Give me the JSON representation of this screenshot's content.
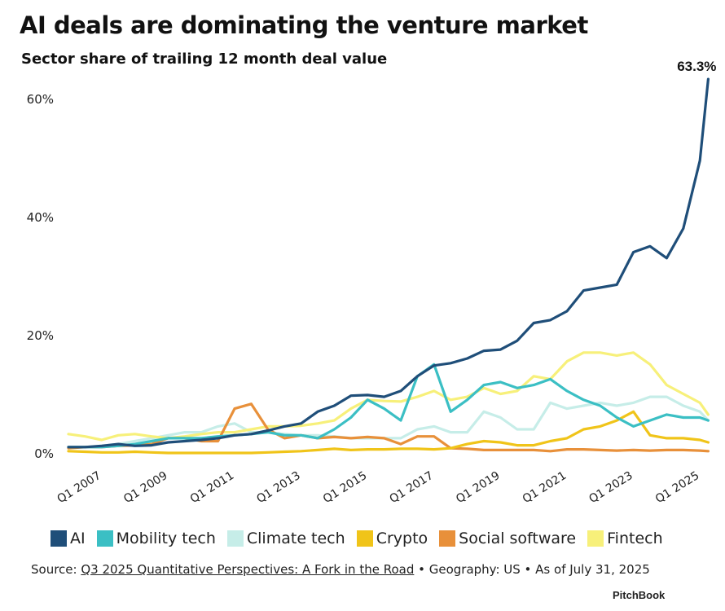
{
  "chart_data": {
    "type": "line",
    "title": "AI deals are dominating the venture market",
    "subtitle": "Sector share of trailing 12 month deal value",
    "xlabel": "",
    "ylabel": "",
    "ylim": [
      0,
      65
    ],
    "yticks": [
      "0%",
      "20%",
      "40%",
      "60%"
    ],
    "ytick_values": [
      0,
      20,
      40,
      60
    ],
    "xtick_labels": [
      "Q1 2007",
      "Q1 2009",
      "Q1 2011",
      "Q1 2013",
      "Q1 2015",
      "Q1 2017",
      "Q1 2019",
      "Q1 2021",
      "Q1 2023",
      "Q1 2025"
    ],
    "x": [
      "Q1 2006",
      "Q3 2006",
      "Q1 2007",
      "Q3 2007",
      "Q1 2008",
      "Q3 2008",
      "Q1 2009",
      "Q3 2009",
      "Q1 2010",
      "Q3 2010",
      "Q1 2011",
      "Q3 2011",
      "Q1 2012",
      "Q3 2012",
      "Q1 2013",
      "Q3 2013",
      "Q1 2014",
      "Q3 2014",
      "Q1 2015",
      "Q3 2015",
      "Q1 2016",
      "Q3 2016",
      "Q1 2017",
      "Q3 2017",
      "Q1 2018",
      "Q3 2018",
      "Q1 2019",
      "Q3 2019",
      "Q1 2020",
      "Q3 2020",
      "Q1 2021",
      "Q3 2021",
      "Q1 2022",
      "Q3 2022",
      "Q1 2023",
      "Q3 2023",
      "Q1 2024",
      "Q3 2024",
      "Q1 2025",
      "Q2 2025"
    ],
    "grid": false,
    "legend_placement": "bottom",
    "annotation": "63.3%",
    "series": [
      {
        "name": "Climate tech",
        "color": "#c6ede8",
        "values": [
          1,
          1,
          1.2,
          1.5,
          2,
          2.5,
          3,
          3.5,
          3.5,
          4.5,
          5,
          3.5,
          3.5,
          3.2,
          3,
          3,
          2.8,
          2.5,
          2.5,
          2.5,
          2.5,
          4,
          4.5,
          3.5,
          3.5,
          7,
          6,
          4,
          4,
          8.5,
          7.5,
          8,
          8.5,
          8,
          8.5,
          9.5,
          9.5,
          8,
          7,
          5.5
        ]
      },
      {
        "name": "Fintech",
        "color": "#f7f07a",
        "values": [
          3.2,
          2.8,
          2.2,
          3,
          3.2,
          2.8,
          2.5,
          2.8,
          3.2,
          3.5,
          3.5,
          4,
          4.5,
          4.5,
          4.6,
          5,
          5.5,
          7.5,
          9,
          8.8,
          8.7,
          9.5,
          10.5,
          9,
          9.5,
          11,
          10,
          10.5,
          13,
          12.5,
          15.5,
          17,
          17,
          16.5,
          17,
          15,
          11.5,
          10,
          8.5,
          6.5
        ]
      },
      {
        "name": "Social software",
        "color": "#e8903a",
        "values": [
          0.8,
          1,
          1,
          1.2,
          1.3,
          1.5,
          2.5,
          2.5,
          2,
          2,
          7.5,
          8.3,
          4,
          2.5,
          3,
          2.5,
          2.7,
          2.5,
          2.7,
          2.5,
          1.5,
          2.8,
          2.8,
          0.8,
          0.7,
          0.5,
          0.5,
          0.5,
          0.5,
          0.3,
          0.6,
          0.6,
          0.5,
          0.4,
          0.5,
          0.4,
          0.5,
          0.5,
          0.4,
          0.3
        ]
      },
      {
        "name": "Crypto",
        "color": "#f0c419",
        "values": [
          0.3,
          0.2,
          0.1,
          0.1,
          0.2,
          0.1,
          0,
          0,
          0,
          0,
          0,
          0,
          0.1,
          0.2,
          0.3,
          0.5,
          0.7,
          0.5,
          0.6,
          0.6,
          0.7,
          0.7,
          0.6,
          0.8,
          1.5,
          2,
          1.8,
          1.3,
          1.3,
          2,
          2.5,
          4,
          4.5,
          5.5,
          7,
          3,
          2.5,
          2.5,
          2.2,
          1.8
        ]
      },
      {
        "name": "Mobility tech",
        "color": "#3bbfc4",
        "values": [
          1,
          1,
          1,
          1.2,
          1.5,
          2,
          2.5,
          2.5,
          2.5,
          2.8,
          3,
          3.2,
          3.5,
          3,
          3,
          2.5,
          4,
          6,
          9,
          7.5,
          5.5,
          13,
          15,
          7,
          9,
          11.5,
          12,
          11,
          11.5,
          12.5,
          10.5,
          9,
          8,
          6,
          4.5,
          5.5,
          6.5,
          6,
          6,
          5.5
        ]
      },
      {
        "name": "AI",
        "color": "#1f4e79",
        "values": [
          1,
          1,
          1.2,
          1.5,
          1.2,
          1.3,
          1.8,
          2,
          2.2,
          2.5,
          3,
          3.2,
          3.8,
          4.5,
          5,
          7,
          8,
          9.7,
          9.8,
          9.5,
          10.5,
          13,
          14.8,
          15.2,
          16,
          17.3,
          17.5,
          19,
          22,
          22.5,
          24,
          27.5,
          28,
          28.5,
          34,
          35,
          33,
          38,
          49.5,
          63.3
        ]
      }
    ]
  },
  "legend_order": [
    "AI",
    "Mobility tech",
    "Climate tech",
    "Crypto",
    "Social software",
    "Fintech"
  ],
  "source": {
    "prefix": "Source: ",
    "link": "Q3 2025 Quantitative Perspectives: A Fork in the Road",
    "suffix": " • Geography: US • As of July 31, 2025"
  },
  "brand": "PitchBook"
}
